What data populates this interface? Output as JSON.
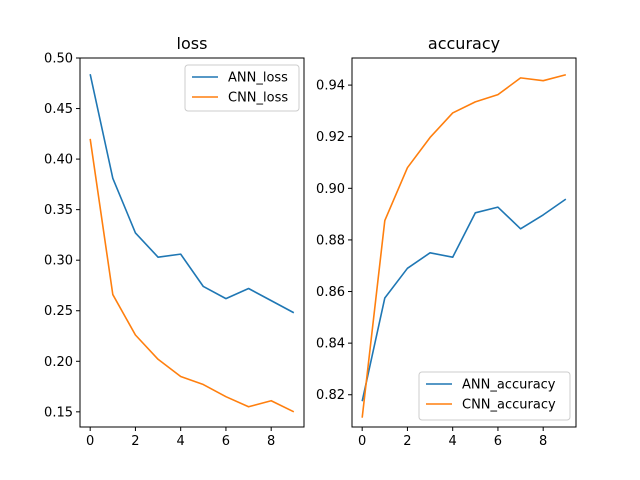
{
  "chart_data": [
    {
      "type": "line",
      "title": "loss",
      "xlabel": "",
      "ylabel": "",
      "x": [
        0,
        1,
        2,
        3,
        4,
        5,
        6,
        7,
        8,
        9
      ],
      "xlim": [
        -0.45,
        9.45
      ],
      "ylim": [
        0.135,
        0.5
      ],
      "xticks": [
        0,
        2,
        4,
        6,
        8
      ],
      "yticks": [
        "0.15",
        "0.20",
        "0.25",
        "0.30",
        "0.35",
        "0.40",
        "0.45",
        "0.50"
      ],
      "legend_position": "top-right",
      "grid": false,
      "series": [
        {
          "name": "ANN_loss",
          "color": "#1f77b4",
          "values": [
            0.484,
            0.381,
            0.327,
            0.303,
            0.306,
            0.274,
            0.262,
            0.272,
            0.26,
            0.248
          ]
        },
        {
          "name": "CNN_loss",
          "color": "#ff7f0e",
          "values": [
            0.42,
            0.266,
            0.226,
            0.202,
            0.185,
            0.177,
            0.165,
            0.155,
            0.161,
            0.15
          ]
        }
      ]
    },
    {
      "type": "line",
      "title": "accuracy",
      "xlabel": "",
      "ylabel": "",
      "x": [
        0,
        1,
        2,
        3,
        4,
        5,
        6,
        7,
        8,
        9
      ],
      "xlim": [
        -0.45,
        9.45
      ],
      "ylim": [
        0.8075,
        0.9505
      ],
      "xticks": [
        0,
        2,
        4,
        6,
        8
      ],
      "yticks": [
        "0.82",
        "0.84",
        "0.86",
        "0.88",
        "0.90",
        "0.92",
        "0.94"
      ],
      "legend_position": "bottom-right",
      "grid": false,
      "series": [
        {
          "name": "ANN_accuracy",
          "color": "#1f77b4",
          "values": [
            0.8175,
            0.8575,
            0.869,
            0.875,
            0.8733,
            0.8905,
            0.8927,
            0.8843,
            0.8897,
            0.8958
          ]
        },
        {
          "name": "CNN_accuracy",
          "color": "#ff7f0e",
          "values": [
            0.8111,
            0.8875,
            0.908,
            0.9197,
            0.9292,
            0.9335,
            0.9363,
            0.9428,
            0.9417,
            0.944
          ]
        }
      ]
    }
  ]
}
